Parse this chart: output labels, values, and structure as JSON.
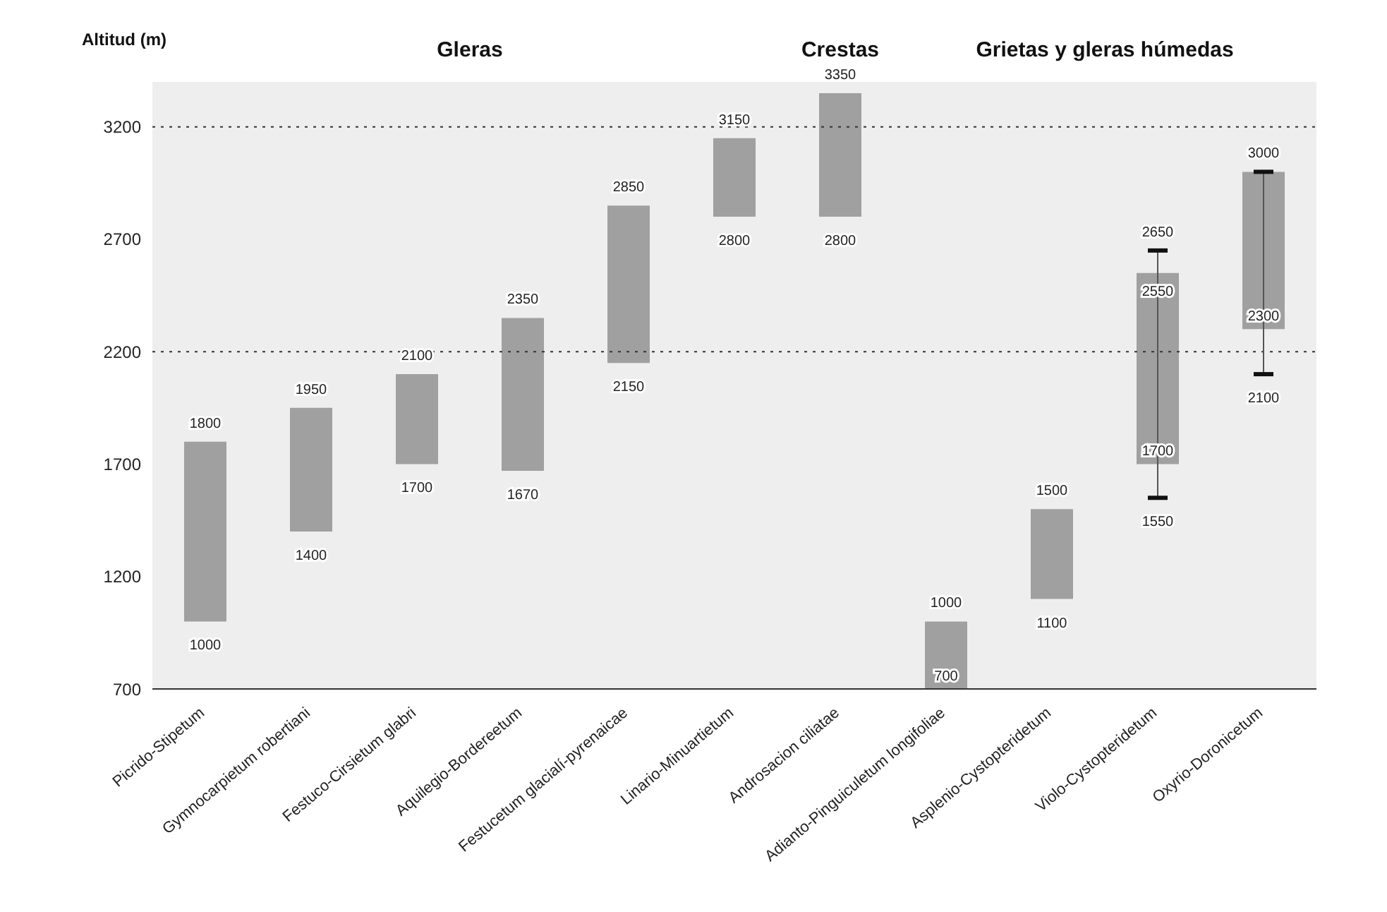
{
  "chart_data": {
    "type": "bar",
    "ylabel": "Altitud (m)",
    "categories": [
      "Picrido-Stipetum",
      "Gymnocarpietum robertiani",
      "Festuco-Cirsietum glabri",
      "Aquilegio-Bordereetum",
      "Festucetum glacialí-pyrenaicae",
      "Linario-Minuartietum",
      "Androsacion ciliatae",
      "Adianto-Pinguiculetum longifoliae",
      "Asplenio-Cystopteridetum",
      "Violo-Cystopteridetum",
      "Oxyrio-Doronicetum"
    ],
    "base": [
      1000,
      1400,
      1700,
      1670,
      2150,
      2800,
      2800,
      700,
      1100,
      1700,
      2300
    ],
    "values": [
      800,
      550,
      400,
      680,
      700,
      350,
      550,
      300,
      400,
      850,
      700
    ],
    "errors": [
      null,
      null,
      null,
      null,
      null,
      null,
      null,
      null,
      null,
      [
        1550,
        2650
      ],
      [
        2100,
        3000
      ]
    ],
    "color": "#a0a0a0",
    "ylim": [
      700,
      3400
    ],
    "yticks": [
      700,
      1200,
      1700,
      2200,
      2700,
      3200
    ],
    "ref_lines": [
      {
        "axis": "y",
        "value": 2200,
        "label": null,
        "line_style": "dotted"
      },
      {
        "axis": "y",
        "value": 3200,
        "label": null,
        "line_style": "dotted"
      }
    ],
    "annotations": [
      "Gleras",
      "Crestas",
      "Grietas y gleras húmedas",
      {
        "text": "1800",
        "x": "Picrido-Stipetum",
        "y": 1800
      },
      {
        "text": "1000",
        "x": "Picrido-Stipetum",
        "y": 1000
      },
      {
        "text": "1950",
        "x": "Gymnocarpietum robertiani",
        "y": 1950
      },
      {
        "text": "1400",
        "x": "Gymnocarpietum robertiani",
        "y": 1400
      },
      {
        "text": "2100",
        "x": "Festuco-Cirsietum glabri",
        "y": 2100
      },
      {
        "text": "1700",
        "x": "Festuco-Cirsietum glabri",
        "y": 1700
      },
      {
        "text": "2350",
        "x": "Aquilegio-Bordereetum",
        "y": 2350
      },
      {
        "text": "1670",
        "x": "Aquilegio-Bordereetum",
        "y": 1670
      },
      {
        "text": "2850",
        "x": "Festucetum glacialí-pyrenaicae",
        "y": 2850
      },
      {
        "text": "2150",
        "x": "Festucetum glacialí-pyrenaicae",
        "y": 2150
      },
      {
        "text": "3150",
        "x": "Linario-Minuartietum",
        "y": 3150
      },
      {
        "text": "2800",
        "x": "Linario-Minuartietum",
        "y": 2800
      },
      {
        "text": "3350",
        "x": "Androsacion ciliatae",
        "y": 3350
      },
      {
        "text": "2800",
        "x": "Androsacion ciliatae",
        "y": 2800
      },
      {
        "text": "1000",
        "x": "Adianto-Pinguiculetum longifoliae",
        "y": 1000
      },
      {
        "text": "700",
        "x": "Adianto-Pinguiculetum longifoliae",
        "y": 700
      },
      {
        "text": "1500",
        "x": "Asplenio-Cystopteridetum",
        "y": 1500
      },
      {
        "text": "1100",
        "x": "Asplenio-Cystopteridetum",
        "y": 1100
      },
      {
        "text": "2650",
        "x": "Violo-Cystopteridetum",
        "y": 2650
      },
      {
        "text": "2550",
        "x": "Violo-Cystopteridetum",
        "y": 2550
      },
      {
        "text": "1700",
        "x": "Violo-Cystopteridetum",
        "y": 1700
      },
      {
        "text": "1550",
        "x": "Violo-Cystopteridetum",
        "y": 1550
      },
      {
        "text": "3000",
        "x": "Oxyrio-Doronicetum",
        "y": 3000
      },
      {
        "text": "2300",
        "x": "Oxyrio-Doronicetum",
        "y": 2300
      },
      {
        "text": "2100",
        "x": "Oxyrio-Doronicetum",
        "y": 2100
      }
    ]
  }
}
